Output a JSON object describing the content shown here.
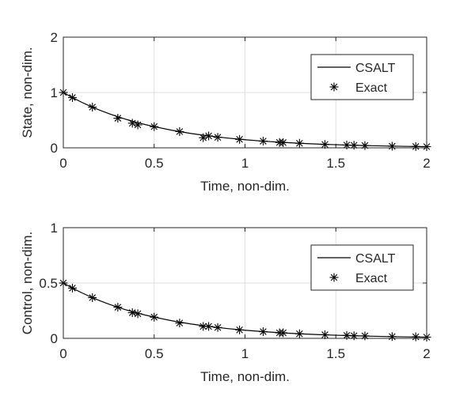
{
  "chart_data": [
    {
      "type": "line",
      "xlabel": "Time, non-dim.",
      "ylabel": "State, non-dim.",
      "xlim": [
        0,
        2
      ],
      "ylim": [
        0,
        2
      ],
      "x_ticks": [
        "0",
        "0.5",
        "1",
        "1.5",
        "2"
      ],
      "y_ticks": [
        "0",
        "1",
        "2"
      ],
      "grid": true,
      "legend_position": "top-right",
      "series": [
        {
          "name": "CSALT",
          "style": "solid line",
          "x": [
            0,
            0.05,
            0.1,
            0.15,
            0.2,
            0.25,
            0.3,
            0.35,
            0.4,
            0.45,
            0.5,
            0.6,
            0.7,
            0.8,
            0.9,
            1.0,
            1.1,
            1.2,
            1.3,
            1.4,
            1.5,
            1.6,
            1.7,
            1.8,
            1.9,
            2.0
          ],
          "y": [
            1.0,
            0.9084,
            0.8252,
            0.7497,
            0.681,
            0.6187,
            0.562,
            0.5106,
            0.4638,
            0.4213,
            0.3827,
            0.3158,
            0.2606,
            0.2151,
            0.1775,
            0.1465,
            0.1209,
            0.0998,
            0.0823,
            0.0679,
            0.056,
            0.0462,
            0.0381,
            0.0315,
            0.026,
            0.0214
          ]
        },
        {
          "name": "Exact",
          "style": "asterisk markers",
          "x": [
            0,
            0.05,
            0.16,
            0.3,
            0.38,
            0.41,
            0.5,
            0.64,
            0.77,
            0.8,
            0.85,
            0.97,
            1.1,
            1.19,
            1.21,
            1.3,
            1.44,
            1.56,
            1.6,
            1.66,
            1.81,
            1.94,
            2.0
          ],
          "y": [
            1.0,
            0.9084,
            0.7357,
            0.5353,
            0.4448,
            0.4148,
            0.3827,
            0.2932,
            0.1836,
            0.2151,
            0.1897,
            0.1525,
            0.1209,
            0.0971,
            0.0952,
            0.0823,
            0.0607,
            0.0497,
            0.0462,
            0.0414,
            0.0292,
            0.0236,
            0.0214
          ]
        }
      ]
    },
    {
      "type": "line",
      "xlabel": "Time, non-dim.",
      "ylabel": "Control, non-dim.",
      "xlim": [
        0,
        2
      ],
      "ylim": [
        0,
        1
      ],
      "x_ticks": [
        "0",
        "0.5",
        "1",
        "1.5",
        "2"
      ],
      "y_ticks": [
        "0",
        "0.5",
        "1"
      ],
      "grid": true,
      "legend_position": "top-right",
      "series": [
        {
          "name": "CSALT",
          "style": "solid line",
          "x": [
            0,
            0.05,
            0.1,
            0.15,
            0.2,
            0.25,
            0.3,
            0.35,
            0.4,
            0.45,
            0.5,
            0.6,
            0.7,
            0.8,
            0.9,
            1.0,
            1.1,
            1.2,
            1.3,
            1.4,
            1.5,
            1.6,
            1.7,
            1.8,
            1.9,
            2.0
          ],
          "y": [
            0.5,
            0.4542,
            0.4126,
            0.3749,
            0.3405,
            0.3094,
            0.281,
            0.2553,
            0.2319,
            0.2107,
            0.1914,
            0.1579,
            0.1303,
            0.1076,
            0.0888,
            0.0733,
            0.0605,
            0.0499,
            0.0412,
            0.034,
            0.028,
            0.0231,
            0.0191,
            0.0158,
            0.013,
            0.0107
          ]
        },
        {
          "name": "Exact",
          "style": "asterisk markers",
          "x": [
            0,
            0.05,
            0.16,
            0.3,
            0.38,
            0.41,
            0.5,
            0.64,
            0.77,
            0.8,
            0.85,
            0.97,
            1.1,
            1.19,
            1.21,
            1.3,
            1.44,
            1.56,
            1.6,
            1.66,
            1.81,
            1.94,
            2.0
          ],
          "y": [
            0.5,
            0.4542,
            0.3679,
            0.281,
            0.2319,
            0.2224,
            0.1914,
            0.1385,
            0.1076,
            0.1076,
            0.0979,
            0.0763,
            0.0605,
            0.0499,
            0.0499,
            0.0412,
            0.0325,
            0.0265,
            0.0231,
            0.0221,
            0.0158,
            0.0138,
            0.0107
          ]
        }
      ]
    }
  ]
}
